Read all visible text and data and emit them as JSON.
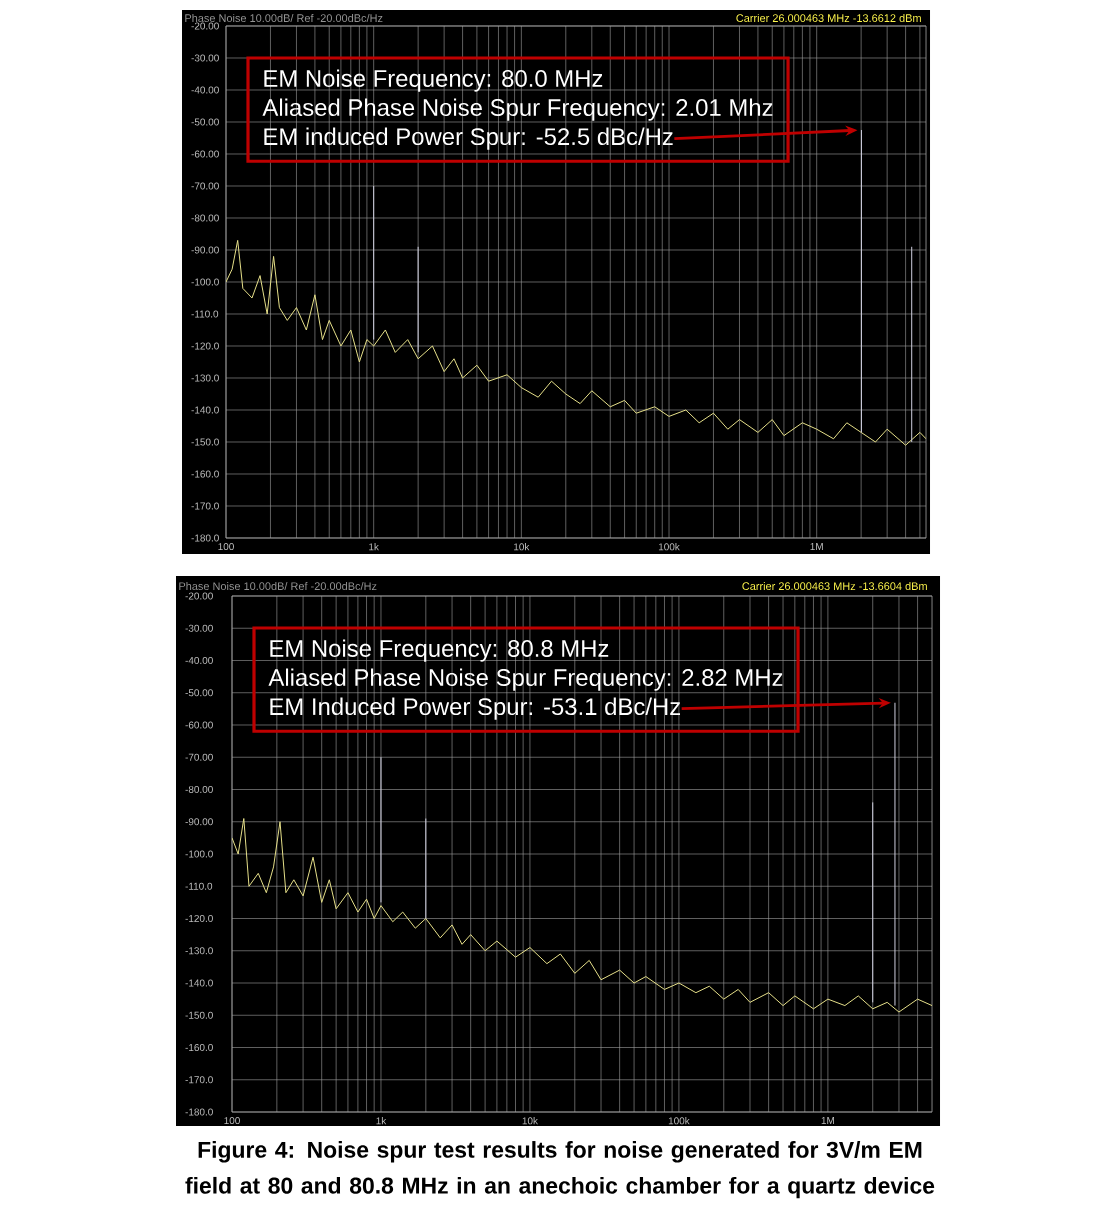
{
  "chart_data": [
    {
      "type": "line",
      "title": "Phase Noise 10.00dB/ Ref -20.00dBc/Hz",
      "subtitle": "Carrier 26.000463 MHz   -13.6612 dBm",
      "annotations": [
        "EM Noise Frequency: 80.0 MHz",
        "Aliased Phase Noise Spur Frequency: 2.01 Mhz",
        {
          "text": "EM induced Power Spur: -52.5 dBc/Hz",
          "x": 2010000,
          "y": -52.5
        }
      ],
      "log": "x",
      "grid": true,
      "xlim": [
        100,
        5500000
      ],
      "ylim": [
        -180,
        -20
      ],
      "xticks": [
        {
          "value": 100,
          "label": "100"
        },
        {
          "value": 1000,
          "label": "1k"
        },
        {
          "value": 10000,
          "label": "10k"
        },
        {
          "value": 100000,
          "label": "100k"
        },
        {
          "value": 1000000,
          "label": "1M"
        }
      ],
      "yticks": [
        {
          "value": -20,
          "label": "-20.00"
        },
        {
          "value": -30,
          "label": "-30.00"
        },
        {
          "value": -40,
          "label": "-40.00"
        },
        {
          "value": -50,
          "label": "-50.00"
        },
        {
          "value": -60,
          "label": "-60.00"
        },
        {
          "value": -70,
          "label": "-70.00"
        },
        {
          "value": -80,
          "label": "-80.00"
        },
        {
          "value": -90,
          "label": "-90.00"
        },
        {
          "value": -100,
          "label": "-100.0"
        },
        {
          "value": -110,
          "label": "-110.0"
        },
        {
          "value": -120,
          "label": "-120.0"
        },
        {
          "value": -130,
          "label": "-130.0"
        },
        {
          "value": -140,
          "label": "-140.0"
        },
        {
          "value": -150,
          "label": "-150.0"
        },
        {
          "value": -160,
          "label": "-160.0"
        },
        {
          "value": -170,
          "label": "-170.0"
        },
        {
          "value": -180,
          "label": "-180.0"
        }
      ],
      "series": [
        {
          "color": "#e6e08a",
          "x": [
            100,
            110,
            120,
            130,
            150,
            170,
            190,
            210,
            230,
            260,
            300,
            350,
            400,
            450,
            500,
            600,
            700,
            800,
            900,
            1000,
            1200,
            1400,
            1700,
            2000,
            2500,
            3000,
            3500,
            4000,
            5000,
            6000,
            8000,
            10000,
            13000,
            16000,
            20000,
            25000,
            30000,
            40000,
            50000,
            60000,
            80000,
            100000,
            130000,
            160000,
            200000,
            250000,
            300000,
            400000,
            500000,
            600000,
            800000,
            1000000,
            1300000,
            1600000,
            2000000,
            2500000,
            3000000,
            4000000,
            5000000,
            5500000
          ],
          "values": [
            -100,
            -96,
            -87,
            -102,
            -105,
            -98,
            -110,
            -92,
            -108,
            -112,
            -108,
            -115,
            -104,
            -118,
            -112,
            -120,
            -115,
            -125,
            -118,
            -120,
            -115,
            -122,
            -118,
            -124,
            -120,
            -128,
            -124,
            -130,
            -126,
            -131,
            -129,
            -133,
            -136,
            -131,
            -135,
            -138,
            -134,
            -139,
            -137,
            -141,
            -139,
            -142,
            -140,
            -144,
            -141,
            -146,
            -143,
            -147,
            -143,
            -148,
            -144,
            -146,
            -149,
            -144,
            -147,
            -150,
            -146,
            -151,
            -147,
            -149
          ]
        },
        {
          "color": "#d0d0e0",
          "x": [
            1000,
            1000,
            null,
            2000,
            2000,
            null,
            2010000,
            2010000,
            null,
            4400000,
            4400000
          ],
          "values": [
            -118,
            -70,
            null,
            -122,
            -89,
            null,
            -147,
            -52.5,
            null,
            -150,
            -89
          ]
        }
      ]
    },
    {
      "type": "line",
      "title": "Phase Noise 10.00dB/ Ref -20.00dBc/Hz",
      "subtitle": "Carrier 26.000463 MHz   -13.6604 dBm",
      "annotations": [
        "EM Noise Frequency: 80.8 MHz",
        "Aliased Phase Noise Spur Frequency: 2.82 MHz",
        {
          "text": "EM Induced Power Spur: -53.1 dBc/Hz",
          "x": 2820000,
          "y": -53.1
        },
        "Figure 4: Noise spur test results for noise generated for 3V/m EM field at 80 and 80.8 MHz in an anechoic chamber for a quartz device"
      ],
      "log": "x",
      "grid": true,
      "xlim": [
        100,
        5000000
      ],
      "ylim": [
        -180,
        -20
      ],
      "xticks": [
        {
          "value": 100,
          "label": "100"
        },
        {
          "value": 1000,
          "label": "1k"
        },
        {
          "value": 10000,
          "label": "10k"
        },
        {
          "value": 100000,
          "label": "100k"
        },
        {
          "value": 1000000,
          "label": "1M"
        }
      ],
      "yticks": [
        {
          "value": -20,
          "label": "-20.00"
        },
        {
          "value": -30,
          "label": "-30.00"
        },
        {
          "value": -40,
          "label": "-40.00"
        },
        {
          "value": -50,
          "label": "-50.00"
        },
        {
          "value": -60,
          "label": "-60.00"
        },
        {
          "value": -70,
          "label": "-70.00"
        },
        {
          "value": -80,
          "label": "-80.00"
        },
        {
          "value": -90,
          "label": "-90.00"
        },
        {
          "value": -100,
          "label": "-100.0"
        },
        {
          "value": -110,
          "label": "-110.0"
        },
        {
          "value": -120,
          "label": "-120.0"
        },
        {
          "value": -130,
          "label": "-130.0"
        },
        {
          "value": -140,
          "label": "-140.0"
        },
        {
          "value": -150,
          "label": "-150.0"
        },
        {
          "value": -160,
          "label": "-160.0"
        },
        {
          "value": -170,
          "label": "-170.0"
        },
        {
          "value": -180,
          "label": "-180.0"
        }
      ],
      "series": [
        {
          "color": "#e6e08a",
          "x": [
            100,
            110,
            120,
            130,
            150,
            170,
            190,
            210,
            230,
            260,
            300,
            350,
            400,
            450,
            500,
            600,
            700,
            800,
            900,
            1000,
            1200,
            1400,
            1700,
            2000,
            2500,
            3000,
            3500,
            4000,
            5000,
            6000,
            8000,
            10000,
            13000,
            16000,
            20000,
            25000,
            30000,
            40000,
            50000,
            60000,
            80000,
            100000,
            130000,
            160000,
            200000,
            250000,
            300000,
            400000,
            500000,
            600000,
            800000,
            1000000,
            1300000,
            1600000,
            2000000,
            2500000,
            3000000,
            4000000,
            5000000
          ],
          "values": [
            -95,
            -100,
            -89,
            -110,
            -106,
            -112,
            -104,
            -90,
            -112,
            -108,
            -113,
            -101,
            -115,
            -108,
            -117,
            -112,
            -118,
            -114,
            -120,
            -116,
            -121,
            -118,
            -123,
            -120,
            -126,
            -122,
            -128,
            -125,
            -130,
            -127,
            -132,
            -129,
            -134,
            -131,
            -137,
            -133,
            -139,
            -136,
            -140,
            -138,
            -142,
            -140,
            -143,
            -141,
            -145,
            -142,
            -146,
            -143,
            -147,
            -144,
            -148,
            -145,
            -147,
            -144,
            -148,
            -146,
            -149,
            -145,
            -147
          ]
        },
        {
          "color": "#d0d0e0",
          "x": [
            1000,
            1000,
            null,
            2000,
            2000,
            null,
            2000000,
            2000000,
            null,
            2820000,
            2820000
          ],
          "values": [
            -115,
            -70,
            null,
            -120,
            -89,
            null,
            -146,
            -84,
            null,
            -147,
            -53.1
          ]
        }
      ]
    }
  ]
}
